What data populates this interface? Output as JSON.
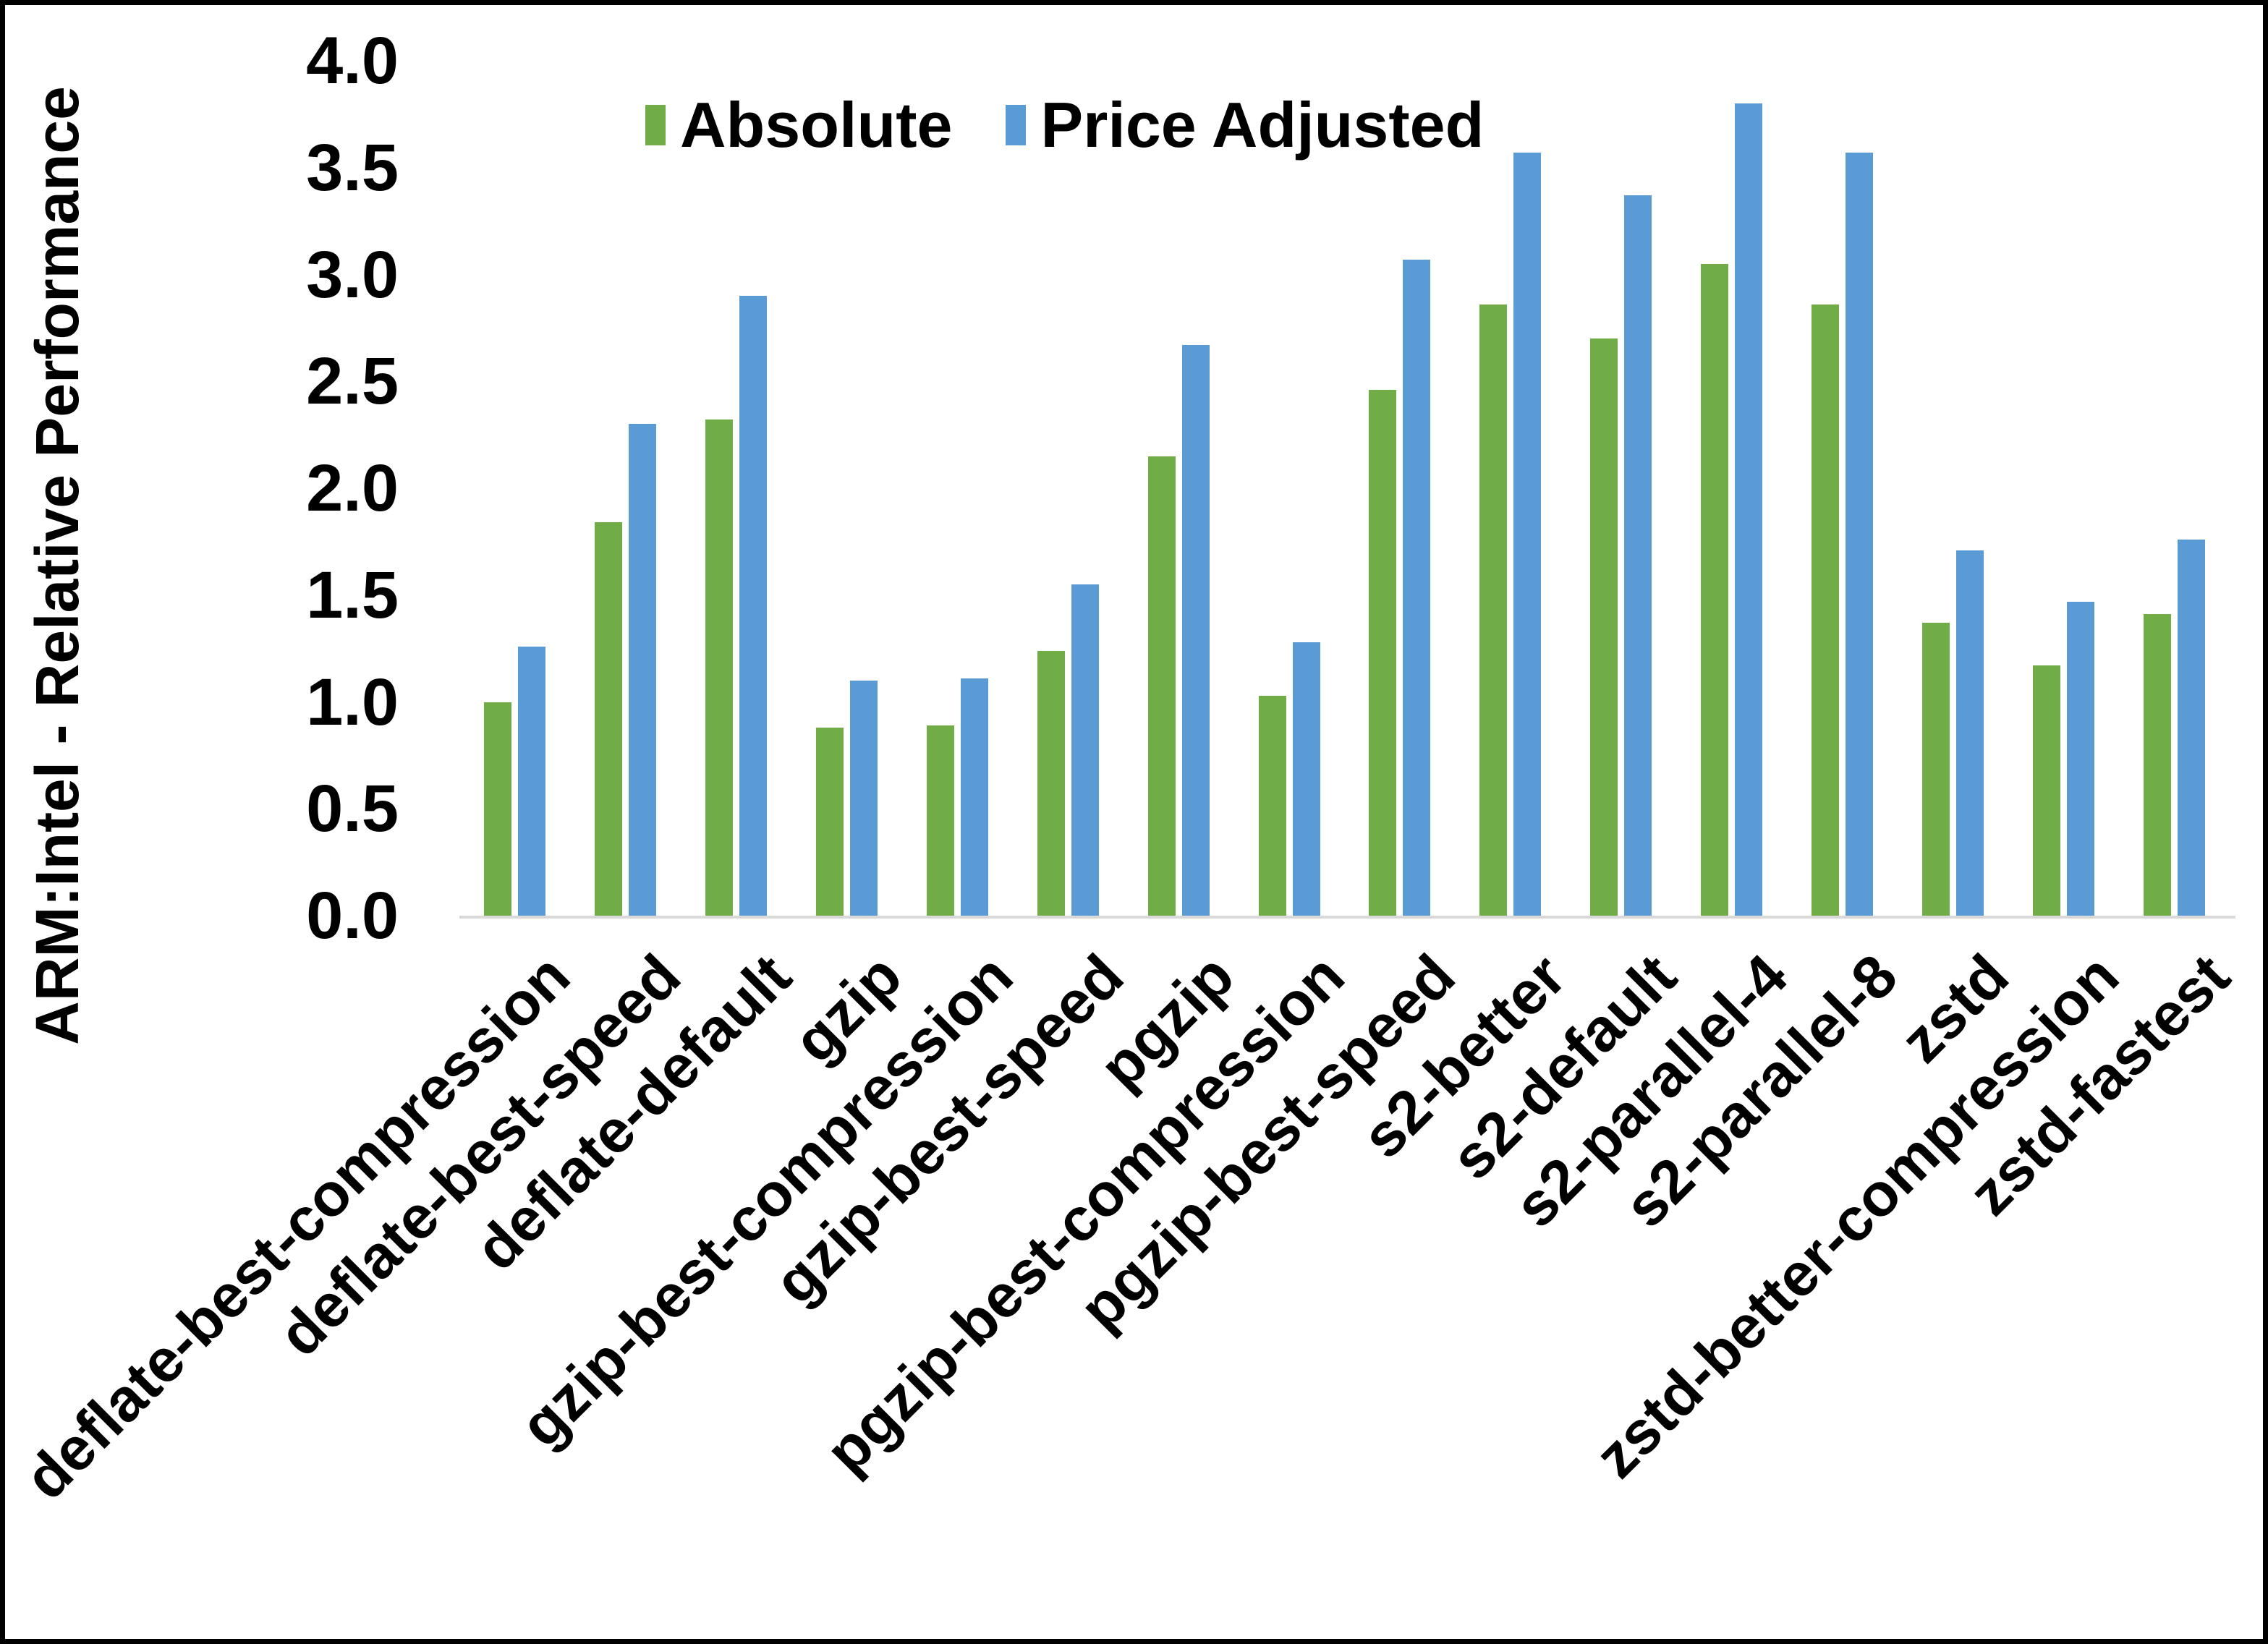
{
  "chart_data": {
    "type": "bar",
    "title": "",
    "ylabel": "ARM:Intel - Relative Performance",
    "xlabel": "",
    "ylim": [
      0.0,
      4.0
    ],
    "ytick_step": 0.5,
    "ytick_labels": [
      "4.0",
      "3.5",
      "3.0",
      "2.5",
      "2.0",
      "1.5",
      "1.0",
      "0.5",
      "0.0"
    ],
    "grid": false,
    "legend_position": "top-center",
    "categories": [
      "deflate-best-compression",
      "deflate-best-speed",
      "deflate-default",
      "gzip",
      "gzip-best-compression",
      "gzip-best-speed",
      "pgzip",
      "pgzip-best-compression",
      "pgzip-best-speed",
      "s2-better",
      "s2-default",
      "s2-parallel-4",
      "s2-parallel-8",
      "zstd",
      "zstd-better-compression",
      "zstd-fastest"
    ],
    "series": [
      {
        "name": "Absolute",
        "color": "#70AD47",
        "values": [
          1.0,
          1.84,
          2.32,
          0.88,
          0.89,
          1.24,
          2.15,
          1.03,
          2.46,
          2.86,
          2.7,
          3.05,
          2.86,
          1.37,
          1.17,
          1.41
        ]
      },
      {
        "name": "Price Adjusted",
        "color": "#5B9BD5",
        "values": [
          1.26,
          2.3,
          2.9,
          1.1,
          1.11,
          1.55,
          2.67,
          1.28,
          3.07,
          3.57,
          3.37,
          3.8,
          3.57,
          1.71,
          1.47,
          1.76
        ]
      }
    ]
  },
  "colors": {
    "background": "#ffffff",
    "frame": "#000000",
    "axis_line": "#d9d9d9",
    "text": "#000000"
  }
}
